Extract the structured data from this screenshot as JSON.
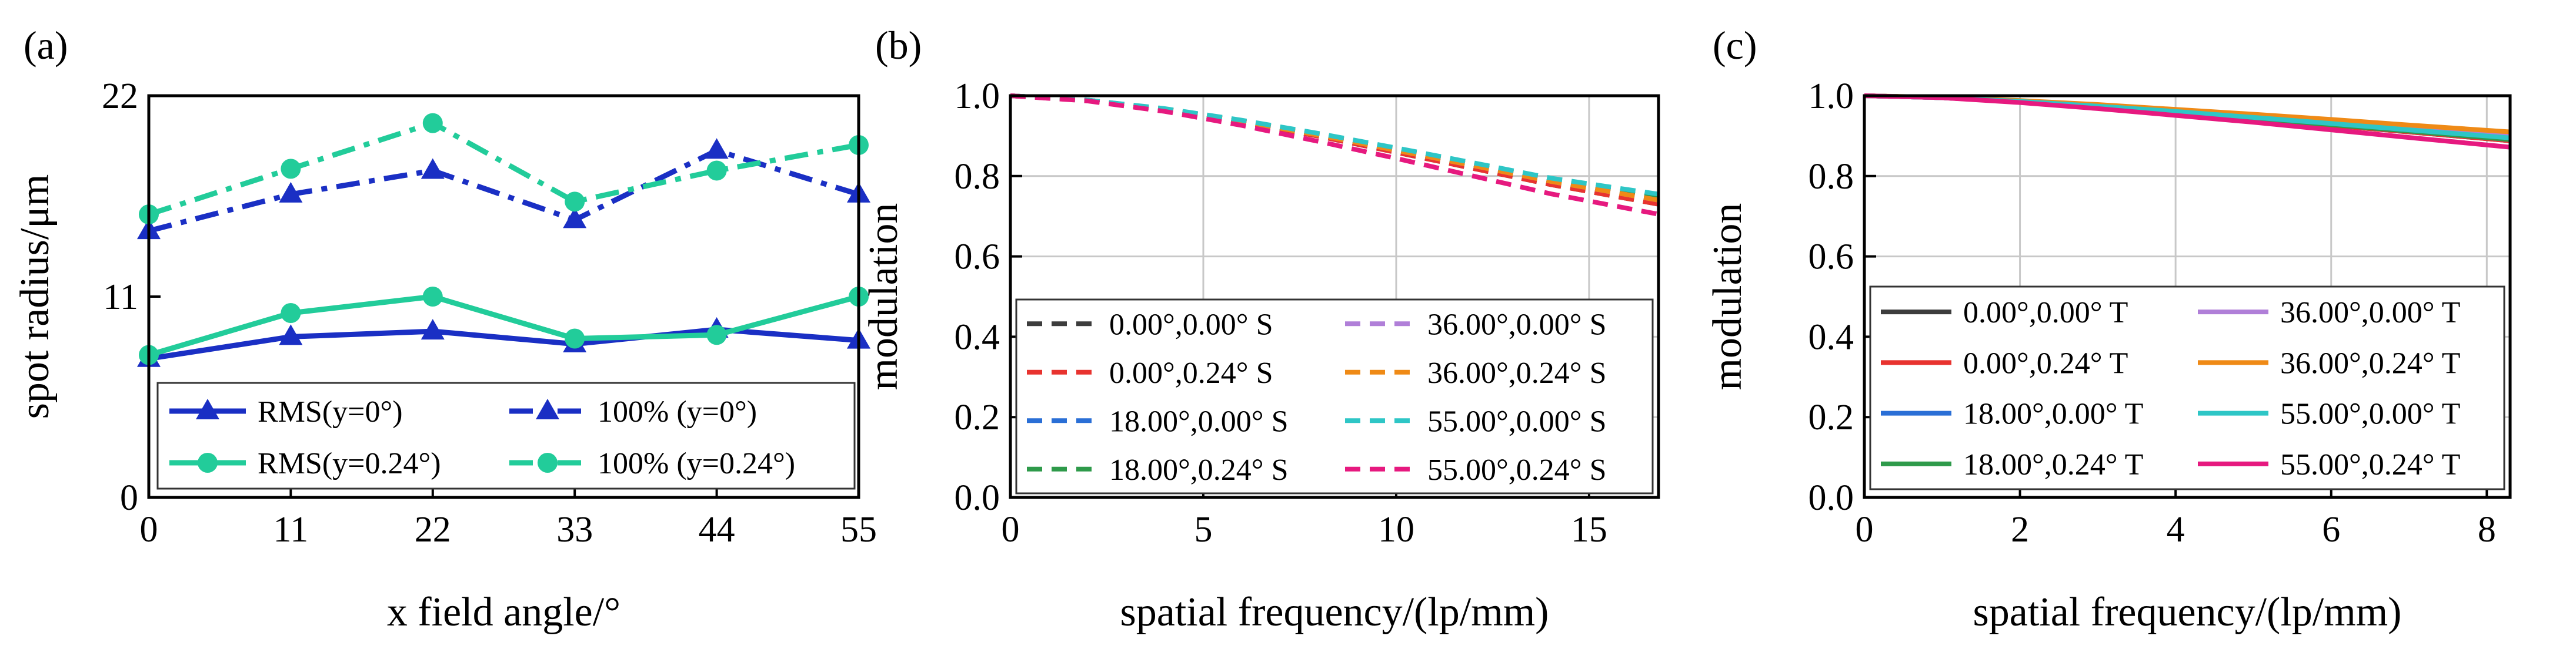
{
  "chart_data": [
    {
      "panel_label": "(a)",
      "type": "line",
      "xlabel": "x field angle/°",
      "ylabel": "spot radius/μm",
      "xlim": [
        0,
        55
      ],
      "ylim": [
        0,
        22
      ],
      "x_ticks": [
        "0",
        "11",
        "22",
        "33",
        "44",
        "55"
      ],
      "y_ticks": [
        "0",
        "11",
        "22"
      ],
      "x": [
        0,
        11,
        22,
        33,
        44,
        55
      ],
      "series": [
        {
          "name": "RMS(y=0°)",
          "color": "#1a2fc4",
          "style": "solid",
          "marker": "triangle",
          "values": [
            7.6,
            8.8,
            9.1,
            8.4,
            9.2,
            8.6
          ]
        },
        {
          "name": "100% (y=0°)",
          "color": "#1a2fc4",
          "style": "dashdot",
          "marker": "triangle",
          "values": [
            14.6,
            16.6,
            17.9,
            15.2,
            19.0,
            16.6
          ]
        },
        {
          "name": "RMS(y=0.24°)",
          "color": "#22cc9a",
          "style": "solid",
          "marker": "circle",
          "values": [
            7.8,
            10.1,
            11.0,
            8.7,
            8.9,
            11.0
          ]
        },
        {
          "name": "100% (y=0.24°)",
          "color": "#22cc9a",
          "style": "dashdot",
          "marker": "circle",
          "values": [
            15.5,
            18.0,
            20.5,
            16.2,
            17.9,
            19.3
          ]
        }
      ],
      "legend_position": "bottom"
    },
    {
      "panel_label": "(b)",
      "type": "line",
      "xlabel": "spatial frequency/(lp/mm)",
      "ylabel": "modulation",
      "xlim": [
        0,
        16.8
      ],
      "ylim": [
        0,
        1
      ],
      "x_ticks": [
        "0",
        "5",
        "10",
        "15"
      ],
      "y_ticks": [
        "0.0",
        "0.2",
        "0.4",
        "0.6",
        "0.8",
        "1.0"
      ],
      "x": [
        0,
        2,
        4,
        6,
        8,
        10,
        12,
        14,
        16.8
      ],
      "series": [
        {
          "name": "0.00°,0.00° S",
          "color": "#3d3d3d",
          "style": "dashed",
          "values": [
            1.0,
            0.988,
            0.965,
            0.934,
            0.899,
            0.859,
            0.819,
            0.779,
            0.73
          ]
        },
        {
          "name": "0.00°,0.24° S",
          "color": "#e8332f",
          "style": "dashed",
          "values": [
            1.0,
            0.988,
            0.965,
            0.934,
            0.899,
            0.859,
            0.819,
            0.779,
            0.73
          ]
        },
        {
          "name": "18.00°,0.00° S",
          "color": "#2a6fd6",
          "style": "dashed",
          "values": [
            1.0,
            0.989,
            0.967,
            0.937,
            0.903,
            0.866,
            0.828,
            0.79,
            0.745
          ]
        },
        {
          "name": "18.00°,0.24° S",
          "color": "#2e9a4a",
          "style": "dashed",
          "values": [
            1.0,
            0.989,
            0.967,
            0.937,
            0.903,
            0.866,
            0.828,
            0.79,
            0.745
          ]
        },
        {
          "name": "36.00°,0.00° S",
          "color": "#b07fd8",
          "style": "dashed",
          "values": [
            1.0,
            0.988,
            0.966,
            0.936,
            0.902,
            0.864,
            0.826,
            0.787,
            0.74
          ]
        },
        {
          "name": "36.00°,0.24° S",
          "color": "#ef8a16",
          "style": "dashed",
          "values": [
            1.0,
            0.988,
            0.966,
            0.936,
            0.902,
            0.864,
            0.826,
            0.787,
            0.74
          ]
        },
        {
          "name": "55.00°,0.00° S",
          "color": "#2ec6c6",
          "style": "dashed",
          "values": [
            1.0,
            0.989,
            0.968,
            0.939,
            0.906,
            0.87,
            0.833,
            0.795,
            0.755
          ]
        },
        {
          "name": "55.00°,0.24° S",
          "color": "#e6197f",
          "style": "dashed",
          "values": [
            1.0,
            0.987,
            0.961,
            0.926,
            0.886,
            0.844,
            0.8,
            0.756,
            0.705
          ]
        }
      ],
      "legend_position": "bottom, two columns"
    },
    {
      "panel_label": "(c)",
      "type": "line",
      "xlabel": "spatial frequency/(lp/mm)",
      "ylabel": "modulation",
      "xlim": [
        0,
        8.3
      ],
      "ylim": [
        0,
        1
      ],
      "x_ticks": [
        "0",
        "2",
        "4",
        "6",
        "8"
      ],
      "y_ticks": [
        "0.0",
        "0.2",
        "0.4",
        "0.6",
        "0.8",
        "1.0"
      ],
      "x": [
        0,
        1,
        2,
        3,
        4,
        5,
        6,
        7,
        8.3
      ],
      "series": [
        {
          "name": "0.00°,0.00° T",
          "color": "#3d3d3d",
          "style": "solid",
          "values": [
            1.0,
            0.995,
            0.985,
            0.972,
            0.958,
            0.942,
            0.926,
            0.91,
            0.888
          ]
        },
        {
          "name": "0.00°,0.24° T",
          "color": "#e8332f",
          "style": "solid",
          "values": [
            1.0,
            0.995,
            0.985,
            0.972,
            0.958,
            0.942,
            0.926,
            0.91,
            0.888
          ]
        },
        {
          "name": "18.00°,0.00° T",
          "color": "#2a6fd6",
          "style": "solid",
          "values": [
            1.0,
            0.995,
            0.986,
            0.973,
            0.959,
            0.944,
            0.928,
            0.912,
            0.891
          ]
        },
        {
          "name": "18.00°,0.24° T",
          "color": "#2e9a4a",
          "style": "solid",
          "values": [
            1.0,
            0.995,
            0.986,
            0.973,
            0.959,
            0.944,
            0.928,
            0.912,
            0.891
          ]
        },
        {
          "name": "36.00°,0.00° T",
          "color": "#b07fd8",
          "style": "solid",
          "values": [
            1.0,
            0.995,
            0.987,
            0.976,
            0.963,
            0.949,
            0.935,
            0.92,
            0.902
          ]
        },
        {
          "name": "36.00°,0.24° T",
          "color": "#ef8a16",
          "style": "solid",
          "values": [
            1.0,
            0.996,
            0.988,
            0.978,
            0.966,
            0.954,
            0.941,
            0.927,
            0.91
          ]
        },
        {
          "name": "55.00°,0.00° T",
          "color": "#2ec6c6",
          "style": "solid",
          "values": [
            1.0,
            0.995,
            0.986,
            0.974,
            0.961,
            0.946,
            0.931,
            0.915,
            0.895
          ]
        },
        {
          "name": "55.00°,0.24° T",
          "color": "#e6197f",
          "style": "solid",
          "values": [
            1.0,
            0.995,
            0.983,
            0.968,
            0.951,
            0.934,
            0.915,
            0.896,
            0.872
          ]
        }
      ],
      "legend_position": "bottom, two columns"
    }
  ]
}
